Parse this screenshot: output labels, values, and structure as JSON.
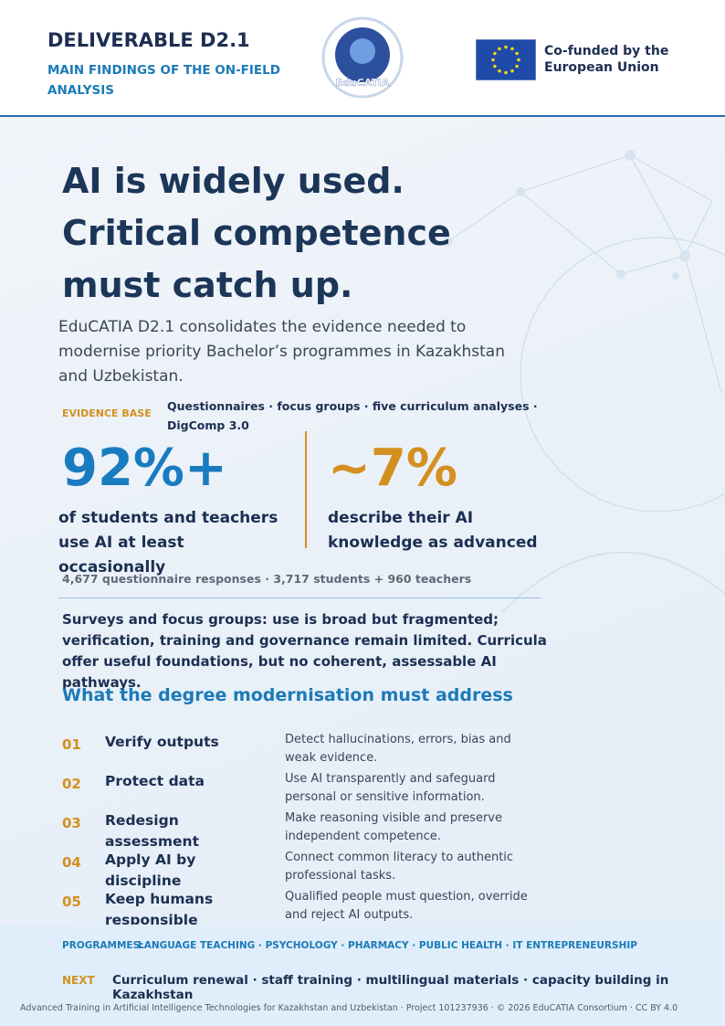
{
  "header": {
    "title": "DELIVERABLE D2.1",
    "subtitle": "MAIN FINDINGS OF THE ON-FIELD ANALYSIS",
    "logo_text": "EduCATIA",
    "eu_text": "Co-funded by the European Union"
  },
  "hero": {
    "headline": [
      "AI is widely used.",
      "Critical competence",
      "must catch up."
    ],
    "intro": "EduCATIA D2.1 consolidates the evidence needed to modernise priority Bachelor’s programmes in Kazakhstan and Uzbekistan."
  },
  "evidence": {
    "label": "EVIDENCE BASE",
    "text": "Questionnaires  ·  focus groups  ·  five curriculum analyses  ·  DigComp 3.0"
  },
  "stats": [
    {
      "value": "92%+",
      "text": "of students and teachers use AI at least occasionally"
    },
    {
      "value": "~7%",
      "text": "describe their AI knowledge as advanced"
    }
  ],
  "responses": "4,677 questionnaire responses  ·  3,717 students  +  960 teachers",
  "summary": "Surveys and focus groups: use is broad but fragmented; verification, training and governance remain limited. Curricula offer useful foundations, but no coherent, assessable AI pathways.",
  "section_title": "What the degree modernisation must address",
  "items": [
    {
      "num": "01",
      "title": "Verify outputs",
      "desc": "Detect hallucinations, errors, bias and weak evidence."
    },
    {
      "num": "02",
      "title": "Protect data",
      "desc": "Use AI transparently and safeguard personal or sensitive information."
    },
    {
      "num": "03",
      "title": "Redesign assessment",
      "desc": "Make reasoning visible and preserve independent competence."
    },
    {
      "num": "04",
      "title": "Apply AI by discipline",
      "desc": "Connect common literacy to authentic professional tasks."
    },
    {
      "num": "05",
      "title": "Keep humans responsible",
      "desc": "Qualified people must question, override and reject AI outputs."
    }
  ],
  "programmes": {
    "label": "PROGRAMMES:",
    "text": "LANGUAGE TEACHING  ·  PSYCHOLOGY  ·  PHARMACY  ·  PUBLIC HEALTH  ·  IT ENTREPRENEURSHIP"
  },
  "next": {
    "label": "NEXT",
    "text": "Curriculum renewal  ·  staff training  ·  multilingual materials  ·  capacity building in Kazakhstan"
  },
  "footer": "Advanced Training in Artificial Intelligence Technologies for Kazakhstan and Uzbekistan  ·  Project 101237936  ·  © 2026 EduCATIA Consortium  ·  CC BY 4.0"
}
